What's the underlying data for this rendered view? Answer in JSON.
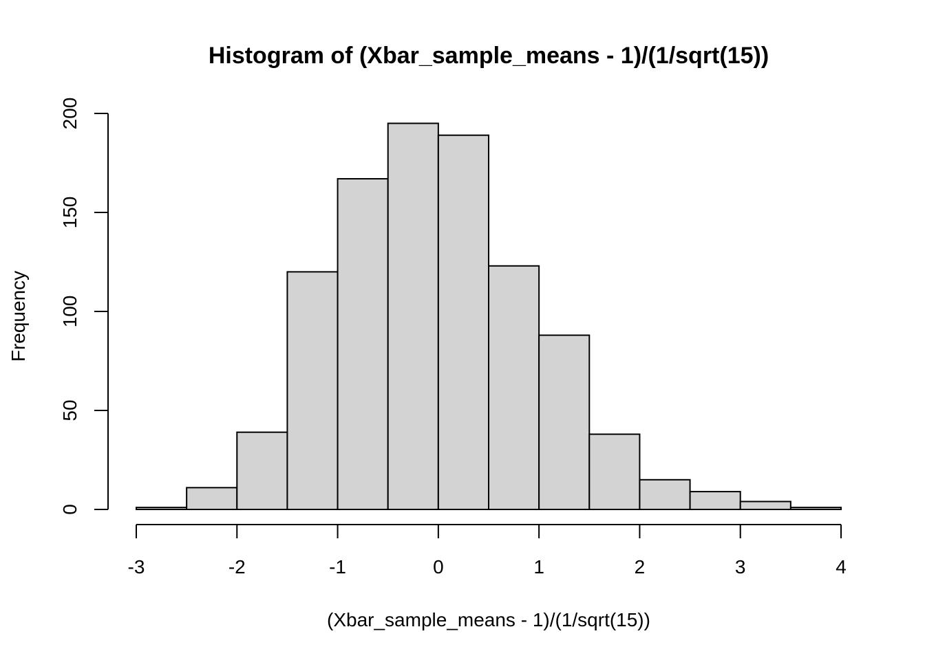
{
  "chart_data": {
    "type": "bar",
    "title": "Histogram of (Xbar_sample_means - 1)/(1/sqrt(15))",
    "xlabel": "(Xbar_sample_means - 1)/(1/sqrt(15))",
    "ylabel": "Frequency",
    "bin_edges": [
      -3,
      -2.5,
      -2,
      -1.5,
      -1,
      -0.5,
      0,
      0.5,
      1,
      1.5,
      2,
      2.5,
      3,
      3.5,
      4
    ],
    "values": [
      1,
      11,
      39,
      120,
      167,
      195,
      189,
      123,
      88,
      38,
      15,
      9,
      4,
      1
    ],
    "xlim": [
      -3,
      4
    ],
    "ylim": [
      0,
      200
    ],
    "x_ticks": [
      -3,
      -2,
      -1,
      0,
      1,
      2,
      3,
      4
    ],
    "y_ticks": [
      0,
      50,
      100,
      150,
      200
    ],
    "bar_color": "#d3d3d3",
    "edge_color": "#000000",
    "grid": false,
    "legend": "none"
  }
}
